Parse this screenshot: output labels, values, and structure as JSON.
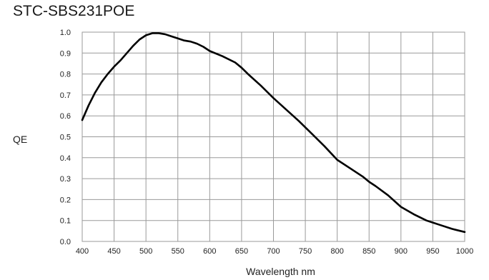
{
  "chart_data": {
    "type": "line",
    "title": "STC-SBS231POE",
    "xlabel": "Wavelength nm",
    "ylabel": "QE",
    "xlim": [
      400,
      1000
    ],
    "ylim": [
      0.0,
      1.0
    ],
    "x_ticks": [
      "400",
      "450",
      "500",
      "550",
      "600",
      "650",
      "700",
      "750",
      "800",
      "850",
      "900",
      "950",
      "1000"
    ],
    "y_ticks": [
      "0.0",
      "0.1",
      "0.2",
      "0.3",
      "0.4",
      "0.5",
      "0.6",
      "0.7",
      "0.8",
      "0.9",
      "1.0"
    ],
    "grid": true,
    "line_color": "#000000",
    "grid_color": "#9a9a9a",
    "series": [
      {
        "x": [
          400,
          410,
          420,
          430,
          440,
          450,
          460,
          470,
          480,
          490,
          500,
          510,
          520,
          530,
          540,
          550,
          560,
          570,
          580,
          590,
          600,
          620,
          640,
          650,
          660,
          680,
          700,
          720,
          740,
          750,
          760,
          780,
          800,
          820,
          840,
          850,
          860,
          880,
          900,
          920,
          940,
          950,
          960,
          980,
          1000
        ],
        "y": [
          0.58,
          0.65,
          0.71,
          0.76,
          0.8,
          0.835,
          0.865,
          0.9,
          0.935,
          0.965,
          0.985,
          0.995,
          0.995,
          0.99,
          0.98,
          0.97,
          0.96,
          0.955,
          0.945,
          0.93,
          0.91,
          0.885,
          0.855,
          0.83,
          0.8,
          0.745,
          0.685,
          0.63,
          0.575,
          0.545,
          0.515,
          0.455,
          0.39,
          0.35,
          0.31,
          0.285,
          0.265,
          0.22,
          0.165,
          0.13,
          0.1,
          0.09,
          0.08,
          0.06,
          0.045
        ]
      }
    ]
  }
}
